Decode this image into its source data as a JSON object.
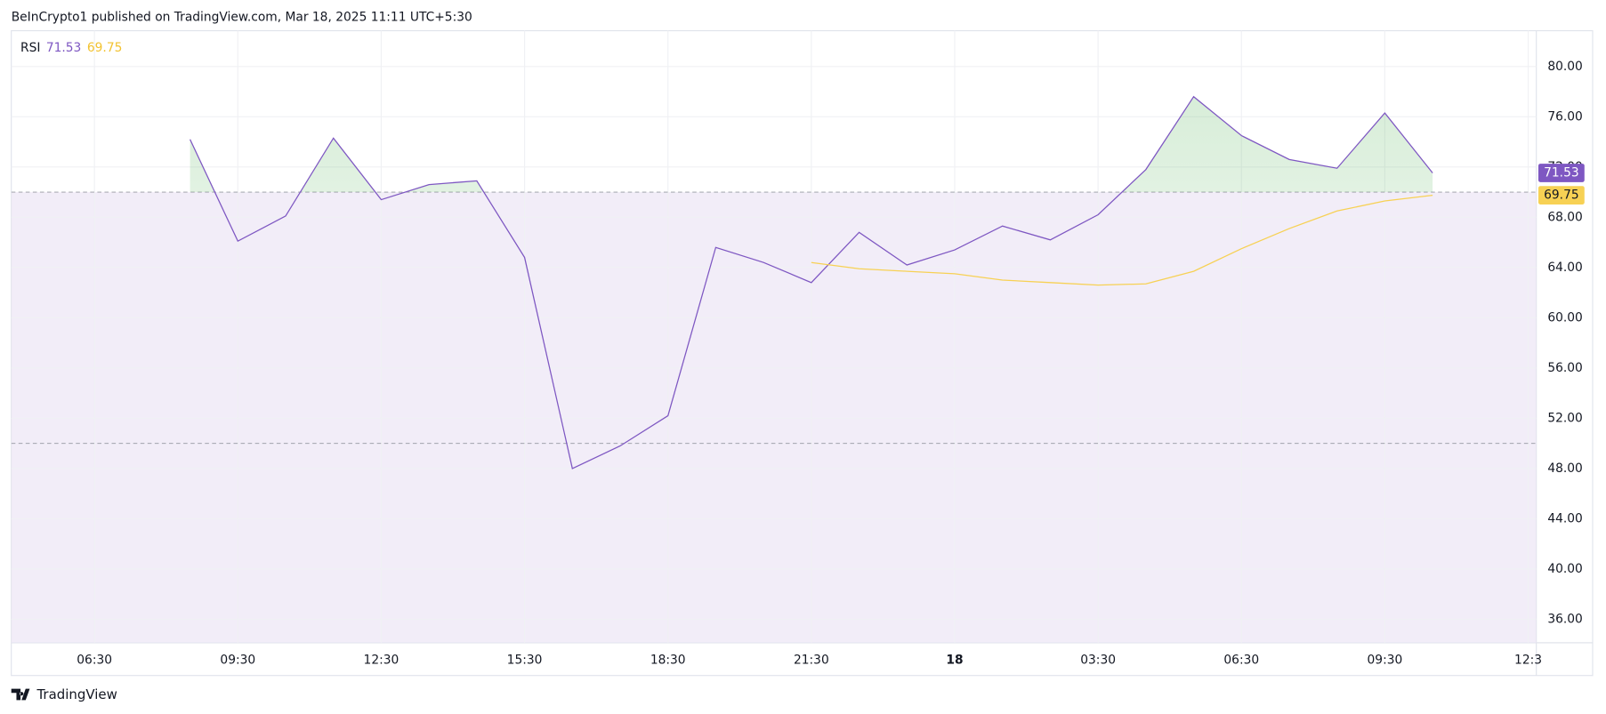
{
  "header": {
    "attribution": "BeInCrypto1 published on TradingView.com, Mar 18, 2025 11:11 UTC+5:30"
  },
  "footer": {
    "brand": "TradingView"
  },
  "chart_data": {
    "type": "line",
    "title": "RSI",
    "x": [
      8.5,
      9.5,
      10.5,
      11.5,
      12.5,
      13.5,
      14.5,
      15.5,
      16.5,
      17.5,
      18.5,
      19.5,
      20.5,
      21.5,
      22.5,
      23.5,
      24.5,
      25.5,
      26.5,
      27.5,
      28.5,
      29.5,
      30.5,
      31.5,
      32.5,
      33.5,
      34.5
    ],
    "series": [
      {
        "name": "RSI",
        "color": "#7e57c2",
        "values": [
          74.2,
          66.1,
          68.1,
          74.3,
          69.4,
          70.6,
          70.9,
          64.8,
          48.0,
          49.8,
          52.2,
          65.6,
          64.4,
          62.8,
          66.8,
          64.2,
          65.4,
          67.3,
          66.2,
          68.2,
          71.8,
          77.6,
          74.5,
          72.6,
          71.9,
          76.3,
          71.53
        ]
      },
      {
        "color": "#f7d154",
        "values": [
          null,
          null,
          null,
          null,
          null,
          null,
          null,
          null,
          null,
          null,
          null,
          null,
          null,
          64.4,
          63.9,
          63.7,
          63.5,
          63.0,
          62.8,
          62.6,
          62.7,
          63.7,
          65.5,
          67.1,
          68.5,
          69.3,
          69.75
        ]
      }
    ],
    "band": [
      30,
      70
    ],
    "band_color": "#ede7f6",
    "hlines": [
      70,
      50
    ],
    "xlim": [
      4.76,
      36.67
    ],
    "ylim": [
      34.13,
      82.85
    ],
    "xticks": [
      {
        "value": 6.5,
        "label": "06:30"
      },
      {
        "value": 9.5,
        "label": "09:30"
      },
      {
        "value": 12.5,
        "label": "12:30"
      },
      {
        "value": 15.5,
        "label": "15:30"
      },
      {
        "value": 18.5,
        "label": "18:30"
      },
      {
        "value": 21.5,
        "label": "21:30"
      },
      {
        "value": 24.5,
        "label": "18"
      },
      {
        "value": 27.5,
        "label": "03:30"
      },
      {
        "value": 30.5,
        "label": "06:30"
      },
      {
        "value": 33.5,
        "label": "09:30"
      },
      {
        "value": 36.5,
        "label": "12:3"
      }
    ],
    "yticks": [
      {
        "value": 36,
        "label": "36.00"
      },
      {
        "value": 40,
        "label": "40.00"
      },
      {
        "value": 44,
        "label": "44.00"
      },
      {
        "value": 48,
        "label": "48.00"
      },
      {
        "value": 52,
        "label": "52.00"
      },
      {
        "value": 56,
        "label": "56.00"
      },
      {
        "value": 60,
        "label": "60.00"
      },
      {
        "value": 64,
        "label": "64.00"
      },
      {
        "value": 68,
        "label": "68.00"
      },
      {
        "value": 72,
        "label": "72.00"
      },
      {
        "value": 76,
        "label": "76.00"
      },
      {
        "value": 80,
        "label": "80.00"
      }
    ],
    "grid": true
  }
}
